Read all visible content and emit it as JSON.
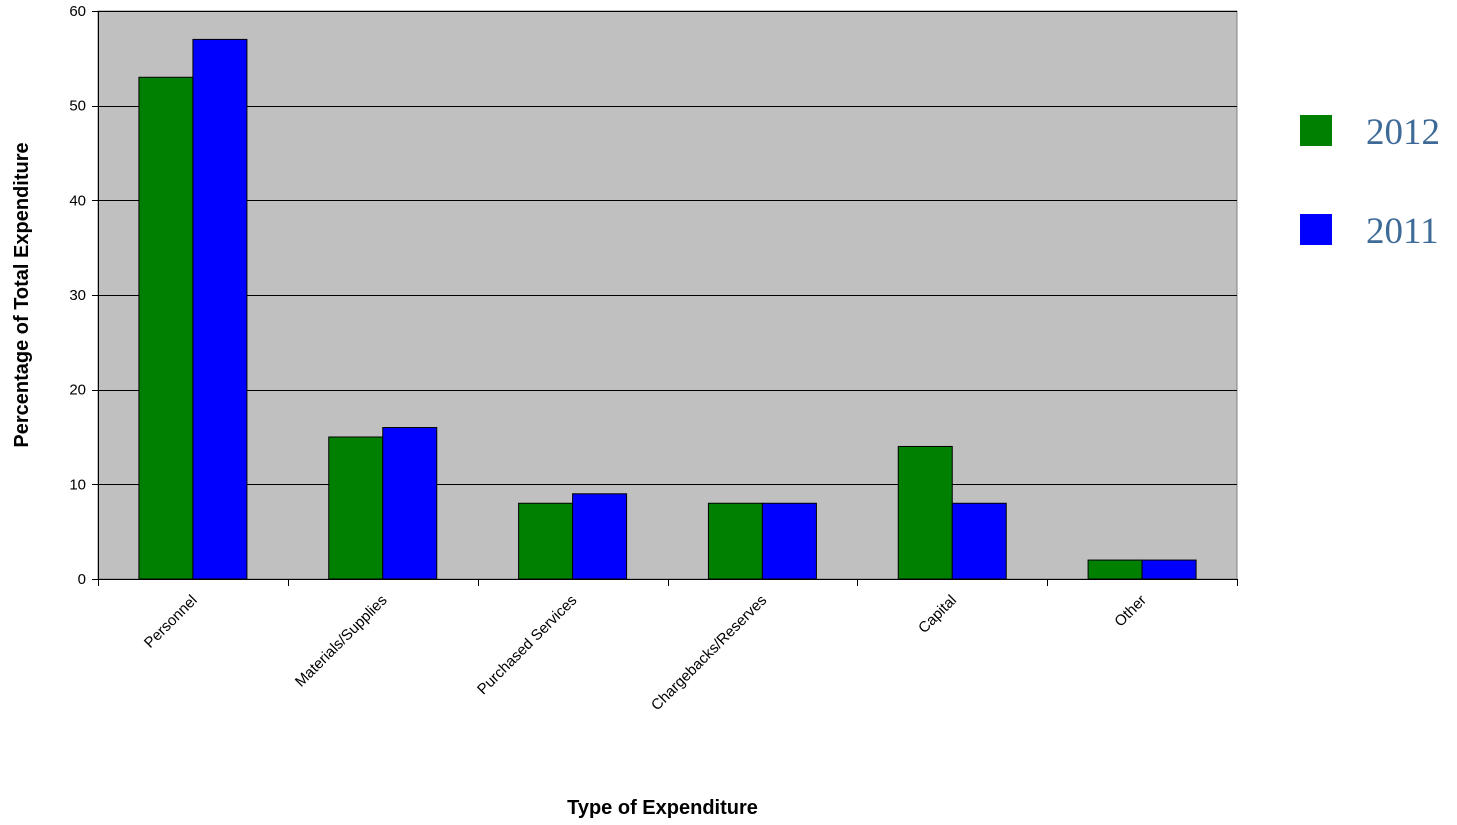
{
  "chart_data": {
    "type": "bar",
    "title": "",
    "xlabel": "Type of Expenditure",
    "ylabel": "Percentage of Total Expenditure",
    "ylim": [
      0,
      60
    ],
    "yticks": [
      0,
      10,
      20,
      30,
      40,
      50,
      60
    ],
    "grid": true,
    "legend_position": "right",
    "plot_background": "#c0c0c0",
    "categories": [
      "Personnel",
      "Materials/Supplies",
      "Purchased Services",
      "Chargebacks/Reserves",
      "Capital",
      "Other"
    ],
    "series": [
      {
        "name": "2012",
        "color": "#008000",
        "values": [
          53,
          15,
          8,
          8,
          14,
          2
        ]
      },
      {
        "name": "2011",
        "color": "#0000ff",
        "values": [
          57,
          16,
          9,
          8,
          8,
          2
        ]
      }
    ]
  }
}
